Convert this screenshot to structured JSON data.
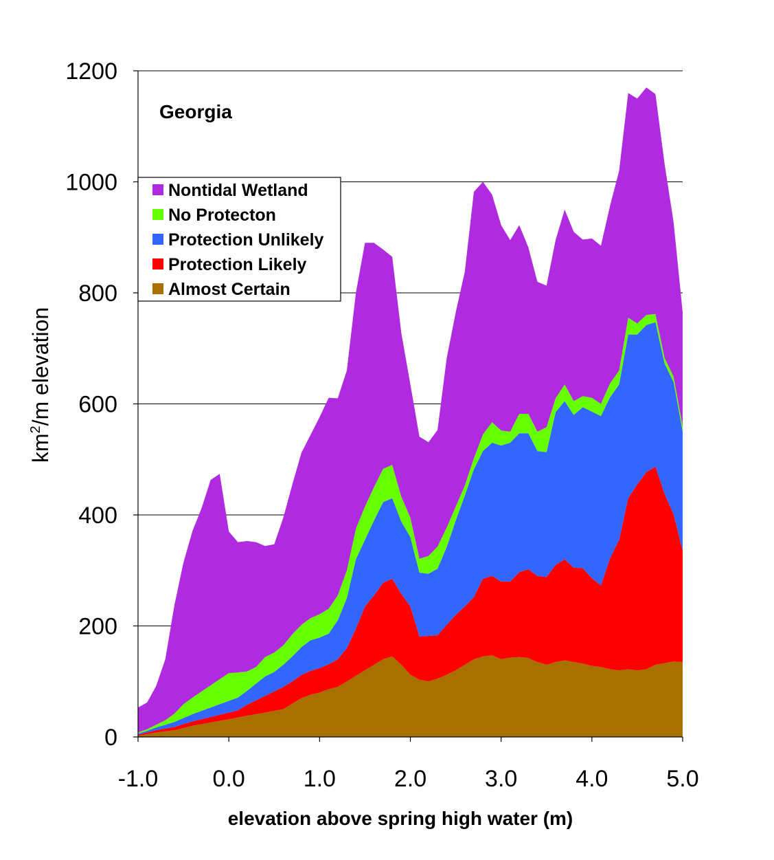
{
  "chart_data": {
    "type": "area",
    "stacked": true,
    "annotation": "Georgia",
    "xlabel": "elevation above spring high water (m)",
    "ylabel": "km²/m elevation",
    "ylabel_base": "km",
    "ylabel_sup": "2",
    "ylabel_rest": "/m elevation",
    "xlim": [
      -1.0,
      5.0
    ],
    "ylim": [
      0,
      1200
    ],
    "x_ticks": [
      -1.0,
      0.0,
      1.0,
      2.0,
      3.0,
      4.0,
      5.0
    ],
    "x_tick_labels": [
      "-1.0",
      "0.0",
      "1.0",
      "2.0",
      "3.0",
      "4.0",
      "5.0"
    ],
    "y_ticks": [
      0,
      200,
      400,
      600,
      800,
      1000,
      1200
    ],
    "y_tick_labels": [
      "0",
      "200",
      "400",
      "600",
      "800",
      "1000",
      "1200"
    ],
    "grid": "horizontal",
    "legend_placement": "upper-left",
    "x": [
      -1.0,
      -0.9,
      -0.8,
      -0.7,
      -0.6,
      -0.5,
      -0.4,
      -0.3,
      -0.2,
      -0.1,
      0.0,
      0.1,
      0.2,
      0.3,
      0.4,
      0.5,
      0.6,
      0.7,
      0.8,
      0.9,
      1.0,
      1.1,
      1.2,
      1.3,
      1.4,
      1.5,
      1.6,
      1.7,
      1.8,
      1.9,
      2.0,
      2.1,
      2.2,
      2.3,
      2.4,
      2.5,
      2.6,
      2.7,
      2.8,
      2.9,
      3.0,
      3.1,
      3.2,
      3.3,
      3.4,
      3.5,
      3.6,
      3.7,
      3.8,
      3.9,
      4.0,
      4.1,
      4.2,
      4.3,
      4.4,
      4.5,
      4.6,
      4.7,
      4.8,
      4.9,
      5.0
    ],
    "series": [
      {
        "name": "Almost Certain",
        "color": "#a87000",
        "values": [
          2,
          5,
          8,
          10,
          12,
          16,
          20,
          23,
          26,
          29,
          32,
          35,
          38,
          41,
          44,
          47,
          50,
          60,
          70,
          76,
          80,
          86,
          90,
          100,
          110,
          120,
          130,
          140,
          145,
          130,
          112,
          103,
          100,
          105,
          112,
          120,
          130,
          140,
          145,
          147,
          140,
          143,
          144,
          142,
          135,
          130,
          135,
          138,
          135,
          132,
          128,
          126,
          122,
          120,
          122,
          120,
          122,
          130,
          133,
          136,
          135
        ]
      },
      {
        "name": "Protection Likely",
        "color": "#ff0000",
        "values": [
          2,
          3,
          4,
          5,
          6,
          7,
          8,
          9,
          10,
          11,
          12,
          13,
          20,
          25,
          30,
          35,
          40,
          40,
          42,
          43,
          44,
          45,
          50,
          60,
          85,
          115,
          125,
          138,
          140,
          128,
          123,
          78,
          82,
          78,
          90,
          100,
          105,
          112,
          140,
          143,
          140,
          137,
          153,
          160,
          155,
          158,
          175,
          182,
          170,
          172,
          158,
          147,
          200,
          235,
          308,
          335,
          355,
          357,
          305,
          265,
          200
        ]
      },
      {
        "name": "Protection Unlikely",
        "color": "#3366ff",
        "values": [
          2,
          3,
          5,
          7,
          9,
          11,
          13,
          15,
          17,
          19,
          21,
          23,
          25,
          30,
          35,
          35,
          40,
          45,
          50,
          55,
          55,
          55,
          70,
          90,
          125,
          120,
          135,
          145,
          145,
          130,
          125,
          115,
          112,
          120,
          140,
          170,
          200,
          230,
          230,
          240,
          245,
          250,
          250,
          245,
          225,
          225,
          275,
          285,
          275,
          290,
          300,
          305,
          290,
          280,
          295,
          270,
          265,
          260,
          235,
          238,
          215
        ]
      },
      {
        "name": "No Protecton",
        "color": "#66ff00",
        "values": [
          2,
          3,
          5,
          8,
          15,
          25,
          30,
          35,
          40,
          45,
          50,
          45,
          35,
          30,
          35,
          35,
          35,
          40,
          40,
          40,
          42,
          45,
          45,
          50,
          55,
          60,
          60,
          60,
          60,
          45,
          35,
          25,
          32,
          40,
          35,
          25,
          18,
          20,
          30,
          37,
          27,
          20,
          35,
          35,
          35,
          45,
          25,
          30,
          25,
          20,
          25,
          22,
          25,
          25,
          30,
          20,
          18,
          15,
          10,
          10,
          10
        ]
      },
      {
        "name": "Nontidal Wetland",
        "color": "#b02ae0",
        "values": [
          45,
          48,
          70,
          110,
          195,
          255,
          300,
          330,
          370,
          370,
          255,
          235,
          235,
          225,
          200,
          195,
          230,
          270,
          310,
          330,
          355,
          380,
          355,
          360,
          425,
          475,
          440,
          395,
          375,
          295,
          240,
          220,
          205,
          210,
          305,
          350,
          385,
          480,
          455,
          410,
          370,
          345,
          340,
          300,
          270,
          255,
          285,
          315,
          305,
          282,
          287,
          285,
          320,
          360,
          405,
          405,
          410,
          396,
          350,
          278,
          205
        ]
      }
    ]
  }
}
